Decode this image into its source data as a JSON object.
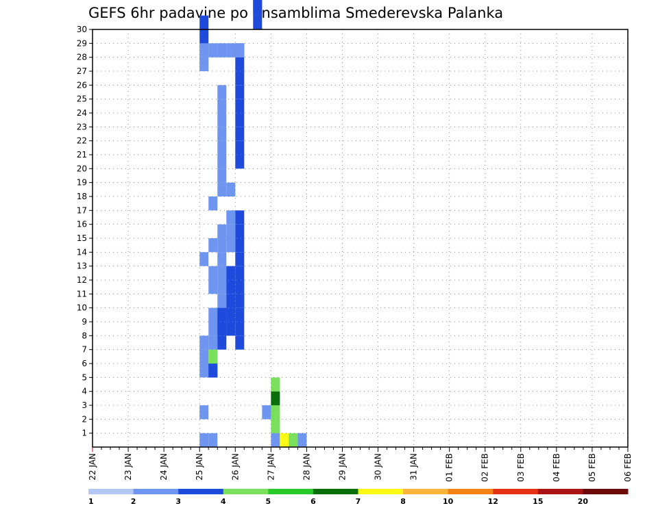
{
  "chart_data": {
    "type": "heatmap",
    "title": "GEFS 6hr padavine po ansamblima Smederevska Palanka",
    "x_tick_labels": [
      "22 JAN",
      "23 JAN",
      "24 JAN",
      "25 JAN",
      "26 JAN",
      "27 JAN",
      "28 JAN",
      "29 JAN",
      "30 JAN",
      "31 JAN",
      "01 FEB",
      "02 FEB",
      "03 FEB",
      "04 FEB",
      "05 FEB",
      "06 FEB"
    ],
    "y_tick_labels": [
      "1",
      "2",
      "3",
      "4",
      "5",
      "6",
      "7",
      "8",
      "9",
      "10",
      "11",
      "12",
      "13",
      "14",
      "15",
      "16",
      "17",
      "18",
      "19",
      "20",
      "21",
      "22",
      "23",
      "24",
      "25",
      "26",
      "27",
      "28",
      "29",
      "30"
    ],
    "x_range_steps": [
      0,
      60
    ],
    "y_range": [
      0,
      30
    ],
    "grid": true,
    "colorbar": {
      "levels": [
        "1",
        "2",
        "3",
        "4",
        "5",
        "6",
        "7",
        "8",
        "10",
        "12",
        "15",
        "20"
      ],
      "colors": [
        "#b4c8f5",
        "#6e96f0",
        "#1e4bdc",
        "#78e05a",
        "#28c828",
        "#0a6e0a",
        "#fafa14",
        "#fab43c",
        "#f58214",
        "#e63214",
        "#aa1414",
        "#6e0a0a"
      ]
    },
    "cells": [
      [
        12,
        30,
        2
      ],
      [
        18,
        31,
        2
      ],
      [
        18,
        32,
        2
      ],
      [
        20,
        33,
        1
      ],
      [
        12,
        0,
        1
      ],
      [
        13,
        0,
        1
      ],
      [
        20,
        0,
        1
      ],
      [
        21,
        0,
        6
      ],
      [
        22,
        0,
        3
      ],
      [
        23,
        0,
        1
      ],
      [
        20,
        1,
        3
      ],
      [
        20,
        2,
        3
      ],
      [
        19,
        2,
        1
      ],
      [
        12,
        2,
        1
      ],
      [
        20,
        3,
        5
      ],
      [
        20,
        4,
        3
      ],
      [
        12,
        5,
        1
      ],
      [
        12,
        6,
        1
      ],
      [
        12,
        7,
        1
      ],
      [
        13,
        7,
        1
      ],
      [
        13,
        8,
        1
      ],
      [
        13,
        9,
        1
      ],
      [
        14,
        9,
        1
      ],
      [
        14,
        10,
        1
      ],
      [
        14,
        11,
        1
      ],
      [
        14,
        12,
        1
      ],
      [
        12,
        13,
        1
      ],
      [
        14,
        13,
        1
      ],
      [
        13,
        14,
        1
      ],
      [
        14,
        14,
        1
      ],
      [
        15,
        14,
        1
      ],
      [
        14,
        15,
        1
      ],
      [
        15,
        15,
        1
      ],
      [
        15,
        16,
        1
      ],
      [
        13,
        17,
        1
      ],
      [
        14,
        18,
        1
      ],
      [
        15,
        18,
        1
      ],
      [
        14,
        19,
        1
      ],
      [
        14,
        20,
        1
      ],
      [
        14,
        21,
        1
      ],
      [
        14,
        22,
        1
      ],
      [
        14,
        23,
        1
      ],
      [
        14,
        24,
        1
      ],
      [
        14,
        25,
        1
      ],
      [
        12,
        27,
        1
      ],
      [
        12,
        28,
        1
      ],
      [
        13,
        28,
        1
      ],
      [
        14,
        28,
        1
      ],
      [
        15,
        28,
        1
      ],
      [
        16,
        28,
        1
      ],
      [
        13,
        11,
        1
      ],
      [
        13,
        12,
        1
      ],
      [
        15,
        11,
        1
      ],
      [
        15,
        12,
        1
      ],
      [
        16,
        11,
        1
      ],
      [
        14,
        9,
        1
      ],
      [
        13,
        5,
        2
      ],
      [
        13,
        6,
        3
      ],
      [
        14,
        7,
        2
      ],
      [
        14,
        8,
        2
      ],
      [
        14,
        9,
        2
      ],
      [
        15,
        8,
        2
      ],
      [
        15,
        9,
        2
      ],
      [
        15,
        10,
        2
      ],
      [
        15,
        11,
        2
      ],
      [
        15,
        12,
        2
      ],
      [
        16,
        7,
        2
      ],
      [
        16,
        8,
        2
      ],
      [
        16,
        9,
        2
      ],
      [
        16,
        10,
        2
      ],
      [
        16,
        11,
        2
      ],
      [
        16,
        12,
        2
      ],
      [
        16,
        13,
        2
      ],
      [
        16,
        14,
        2
      ],
      [
        16,
        15,
        2
      ],
      [
        16,
        16,
        2
      ],
      [
        16,
        20,
        2
      ],
      [
        16,
        21,
        2
      ],
      [
        16,
        22,
        2
      ],
      [
        16,
        23,
        2
      ],
      [
        16,
        24,
        2
      ],
      [
        16,
        25,
        2
      ],
      [
        16,
        26,
        2
      ],
      [
        16,
        27,
        2
      ],
      [
        16,
        28,
        2
      ],
      [
        12,
        27,
        1
      ],
      [
        12,
        28,
        1
      ],
      [
        13,
        28,
        1
      ],
      [
        14,
        28,
        1
      ],
      [
        15,
        28,
        1
      ],
      [
        16,
        28,
        1
      ],
      [
        13,
        5,
        2
      ],
      [
        14,
        8,
        2
      ],
      [
        15,
        9,
        2
      ],
      [
        16,
        10,
        2
      ],
      [
        12,
        29,
        2
      ],
      [
        18,
        30,
        2
      ],
      [
        18,
        31,
        2
      ],
      [
        18,
        32,
        2
      ],
      [
        19,
        33,
        1
      ]
    ],
    "cells_note": "[step_index, member_row_0based, color_level_index]"
  }
}
